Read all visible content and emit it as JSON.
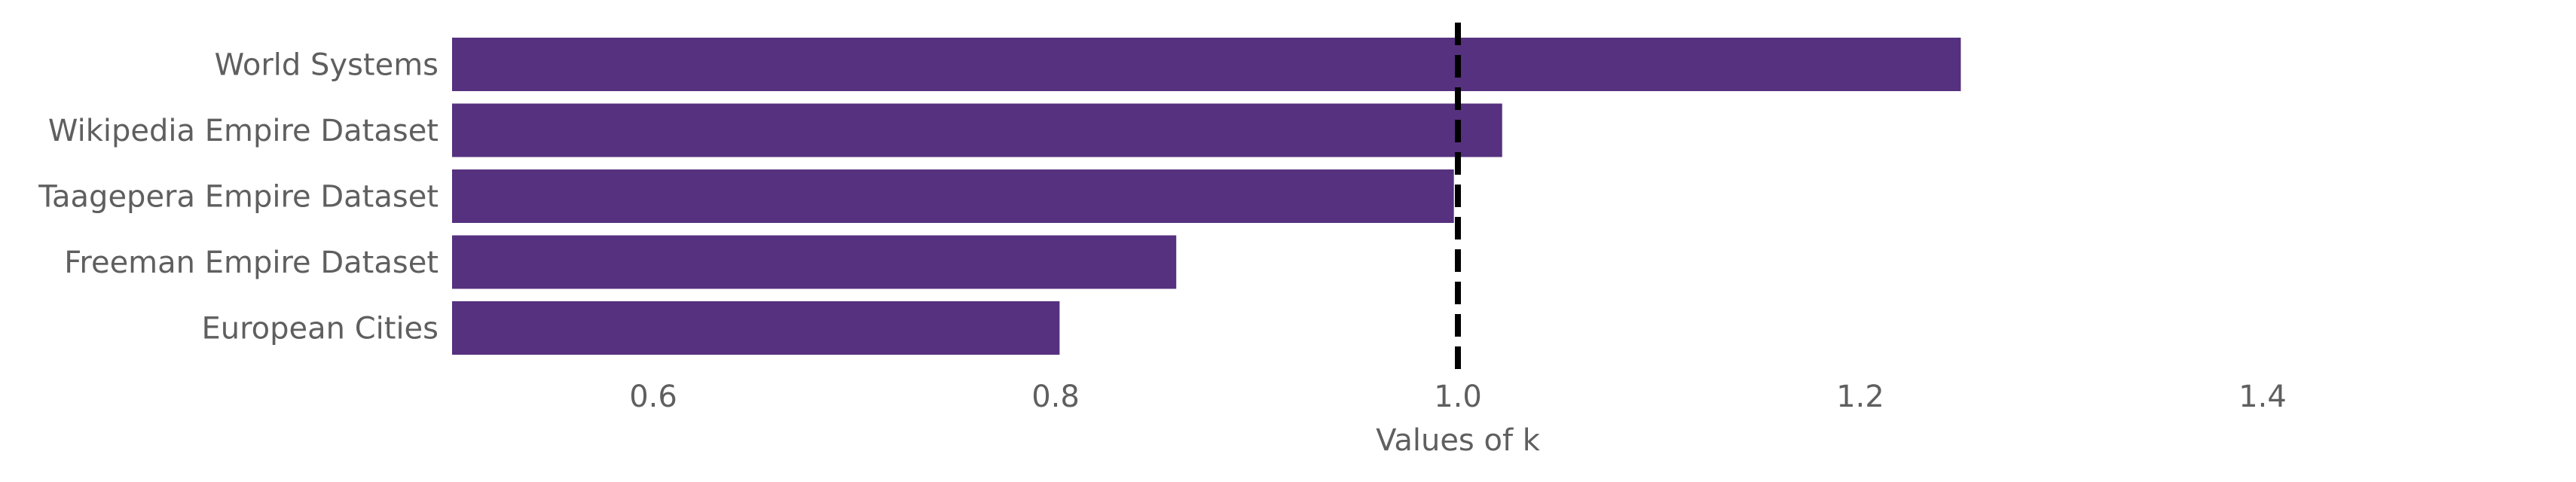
{
  "chart_data": {
    "type": "bar",
    "orientation": "horizontal",
    "categories": [
      "World Systems",
      "Wikipedia Empire Dataset",
      "Taagepera Empire Dataset",
      "Freeman Empire Dataset",
      "European Cities"
    ],
    "values": [
      1.25,
      1.022,
      0.998,
      0.86,
      0.802
    ],
    "title": "",
    "xlabel": "Values of k",
    "ylabel": "",
    "xlim": [
      0.5,
      1.5
    ],
    "xticks": [
      0.6,
      0.8,
      1.0,
      1.2,
      1.4
    ],
    "xtick_labels": [
      "0.6",
      "0.8",
      "1.0",
      "1.2",
      "1.4"
    ],
    "reference_line": {
      "x": 1.0,
      "style": "dashed",
      "color": "#000000"
    },
    "bar_color": "#56317f",
    "grid": false
  }
}
